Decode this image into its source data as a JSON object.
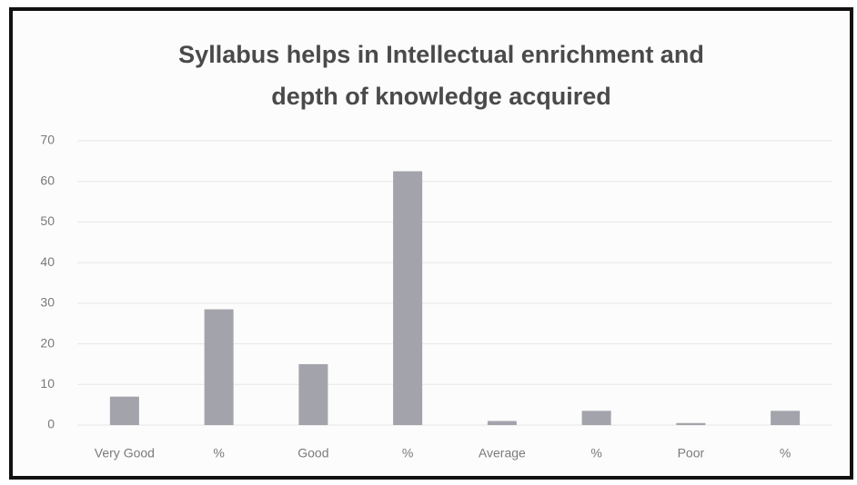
{
  "chart_data": {
    "type": "bar",
    "title": [
      "Syllabus helps in Intellectual enrichment and",
      "depth of knowledge acquired"
    ],
    "categories": [
      "Very Good",
      "%",
      "Good",
      "%",
      "Average",
      "%",
      "Poor",
      "%"
    ],
    "values": [
      7,
      28.5,
      15,
      62.5,
      1,
      3.5,
      0.5,
      3.5
    ],
    "color": "#a3a3ab",
    "ylim": [
      0,
      70
    ],
    "yticks": [
      0,
      10,
      20,
      30,
      40,
      50,
      60,
      70
    ],
    "grid": true
  }
}
